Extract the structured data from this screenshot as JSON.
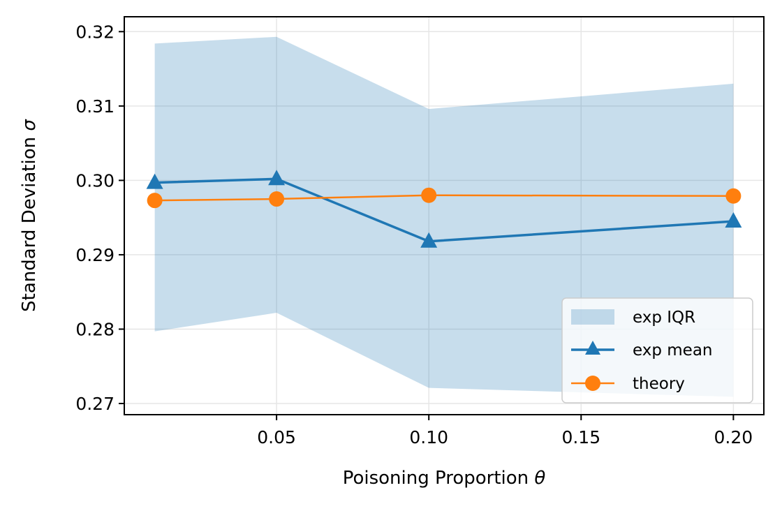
{
  "chart_data": {
    "type": "line",
    "xlabel": "Poisoning Proportion",
    "xlabel_symbol": "θ",
    "ylabel": "Standard Deviation",
    "ylabel_symbol": "σ",
    "x": [
      0.01,
      0.05,
      0.1,
      0.2
    ],
    "xlim": [
      0.0,
      0.21
    ],
    "ylim": [
      0.2685,
      0.322
    ],
    "xticks": [
      0.05,
      0.1,
      0.15,
      0.2
    ],
    "xtick_labels": [
      "0.05",
      "0.10",
      "0.15",
      "0.20"
    ],
    "yticks": [
      0.27,
      0.28,
      0.29,
      0.3,
      0.31,
      0.32
    ],
    "ytick_labels": [
      "0.27",
      "0.28",
      "0.29",
      "0.30",
      "0.31",
      "0.32"
    ],
    "grid": true,
    "legend_position": "lower right",
    "band": {
      "name": "exp IQR",
      "lower": [
        0.2797,
        0.2822,
        0.2721,
        0.2709
      ],
      "upper": [
        0.3184,
        0.3193,
        0.3096,
        0.313
      ],
      "color": "#1f77b4",
      "opacity": 0.25
    },
    "series": [
      {
        "name": "exp mean",
        "values": [
          0.2997,
          0.3002,
          0.2918,
          0.2945
        ],
        "color": "#1f77b4",
        "marker": "triangle"
      },
      {
        "name": "theory",
        "values": [
          0.2973,
          0.2975,
          0.298,
          0.2979
        ],
        "color": "#ff7f0e",
        "marker": "circle"
      }
    ]
  }
}
